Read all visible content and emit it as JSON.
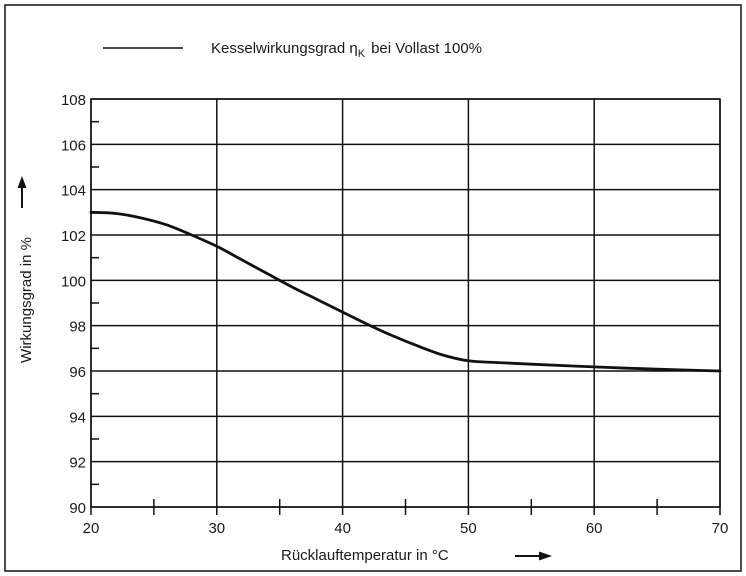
{
  "chart_data": {
    "type": "line",
    "legend": {
      "placement": "top-left",
      "label_prefix": "Kesselwirkungsgrad η",
      "label_subscript": "K",
      "label_suffix": "bei Vollast 100%"
    },
    "xlabel": "Rücklauftemperatur in °C",
    "ylabel": "Wirkungsgrad in %",
    "xlim": [
      20,
      70
    ],
    "ylim": [
      90,
      108
    ],
    "x_ticks": [
      20,
      30,
      40,
      50,
      60,
      70
    ],
    "y_ticks": [
      90,
      92,
      94,
      96,
      98,
      100,
      102,
      104,
      106,
      108
    ],
    "x_tick_labels": [
      "20",
      "30",
      "40",
      "50",
      "60",
      "70"
    ],
    "y_tick_labels": [
      "90",
      "92",
      "94",
      "96",
      "98",
      "100",
      "102",
      "104",
      "106",
      "108"
    ],
    "grid": true,
    "line_color": "#111111",
    "series": [
      {
        "x": [
          20,
          22,
          24,
          26,
          28,
          30,
          32,
          34,
          36,
          38,
          40,
          42,
          44,
          46,
          48,
          50,
          52,
          55,
          60,
          65,
          70
        ],
        "values": [
          103.0,
          102.95,
          102.75,
          102.45,
          102.0,
          101.5,
          100.9,
          100.3,
          99.7,
          99.15,
          98.6,
          98.05,
          97.55,
          97.1,
          96.7,
          96.45,
          96.38,
          96.3,
          96.18,
          96.08,
          96.0
        ]
      }
    ]
  }
}
